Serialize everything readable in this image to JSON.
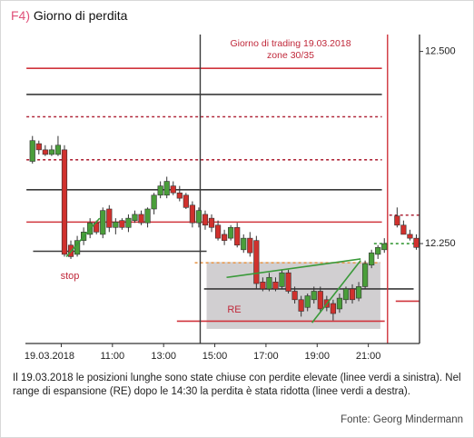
{
  "header": {
    "label": "F4)",
    "title": "Giorno di perdita"
  },
  "caption": "Il 19.03.2018 le posizioni lunghe sono state chiuse con perdite elevate (linee verdi a sinistra). Nel range di espansione (RE) dopo le 14:30 la perdita è stata ridotta (linee verdi a destra).",
  "source": "Fonte: Georg Mindermann",
  "chart_data": {
    "type": "candlestick",
    "annotations": [
      "Giorno di trading 19.03.2018",
      "zone 30/35",
      "stop",
      "RE"
    ],
    "xlim": [
      7.6,
      23.0
    ],
    "xticks": [
      {
        "value": 9,
        "label": "19.03.2018"
      },
      {
        "value": 11,
        "label": "11:00"
      },
      {
        "value": 13,
        "label": "13:00"
      },
      {
        "value": 15,
        "label": "15:00"
      },
      {
        "value": 17,
        "label": "17:00"
      },
      {
        "value": 19,
        "label": "19:00"
      },
      {
        "value": 21,
        "label": "21:00"
      }
    ],
    "ylim": [
      12120,
      12522
    ],
    "yticks": [
      {
        "value": 12500,
        "label": "12.500"
      },
      {
        "value": 12250,
        "label": "12.250"
      }
    ],
    "up_color": "#4a9e3a",
    "down_color": "#d0312d",
    "x": [
      7.875,
      8.125,
      8.375,
      8.625,
      8.875,
      9.125,
      9.375,
      9.625,
      9.875,
      10.125,
      10.375,
      10.625,
      10.875,
      11.125,
      11.375,
      11.625,
      11.875,
      12.125,
      12.375,
      12.625,
      12.875,
      13.125,
      13.375,
      13.625,
      13.875,
      14.125,
      14.375,
      14.625,
      14.875,
      15.125,
      15.375,
      15.625,
      15.875,
      16.125,
      16.375,
      16.625,
      16.875,
      17.125,
      17.375,
      17.625,
      17.875,
      18.125,
      18.375,
      18.625,
      18.875,
      19.125,
      19.375,
      19.625,
      19.875,
      20.125,
      20.375,
      20.625,
      20.875,
      21.125,
      21.375,
      21.625,
      22.125,
      22.375,
      22.625,
      22.875
    ],
    "open": [
      12357,
      12380,
      12372,
      12366,
      12366,
      12372,
      12248,
      12236,
      12254,
      12262,
      12277,
      12262,
      12295,
      12271,
      12280,
      12271,
      12280,
      12288,
      12277,
      12295,
      12313,
      12313,
      12325,
      12316,
      12313,
      12300,
      12277,
      12288,
      12283,
      12274,
      12262,
      12257,
      12271,
      12242,
      12257,
      12254,
      12200,
      12191,
      12200,
      12194,
      12212,
      12188,
      12177,
      12167,
      12177,
      12188,
      12177,
      12172,
      12165,
      12177,
      12191,
      12179,
      12194,
      12222,
      12236,
      12242,
      12286,
      12274,
      12262,
      12257
    ],
    "high": [
      12390,
      12384,
      12378,
      12378,
      12390,
      12378,
      12254,
      12260,
      12271,
      12283,
      12280,
      12297,
      12300,
      12283,
      12283,
      12288,
      12293,
      12293,
      12297,
      12316,
      12331,
      12337,
      12331,
      12325,
      12316,
      12305,
      12297,
      12293,
      12288,
      12280,
      12268,
      12274,
      12277,
      12262,
      12265,
      12260,
      12206,
      12212,
      12206,
      12216,
      12216,
      12194,
      12182,
      12185,
      12194,
      12194,
      12182,
      12177,
      12185,
      12194,
      12197,
      12200,
      12228,
      12242,
      12248,
      12257,
      12297,
      12280,
      12268,
      12262
    ],
    "low": [
      12354,
      12366,
      12364,
      12364,
      12364,
      12233,
      12230,
      12233,
      12248,
      12257,
      12262,
      12257,
      12265,
      12262,
      12268,
      12265,
      12277,
      12274,
      12271,
      12288,
      12309,
      12309,
      12313,
      12305,
      12295,
      12271,
      12271,
      12268,
      12265,
      12254,
      12248,
      12254,
      12245,
      12238,
      12233,
      12191,
      12188,
      12188,
      12188,
      12191,
      12185,
      12172,
      12155,
      12162,
      12172,
      12160,
      12162,
      12150,
      12160,
      12172,
      12172,
      12175,
      12191,
      12218,
      12230,
      12238,
      12271,
      12262,
      12254,
      12242
    ],
    "close": [
      12384,
      12372,
      12366,
      12372,
      12378,
      12236,
      12233,
      12254,
      12265,
      12277,
      12265,
      12293,
      12271,
      12278,
      12271,
      12283,
      12288,
      12277,
      12295,
      12313,
      12325,
      12331,
      12316,
      12309,
      12297,
      12277,
      12293,
      12274,
      12271,
      12257,
      12254,
      12271,
      12248,
      12257,
      12238,
      12198,
      12191,
      12206,
      12191,
      12212,
      12188,
      12177,
      12162,
      12182,
      12188,
      12165,
      12167,
      12159,
      12179,
      12191,
      12177,
      12194,
      12224,
      12238,
      12245,
      12250,
      12274,
      12262,
      12257,
      12245
    ],
    "zone": {
      "x": [
        14.68,
        21.47
      ],
      "y": [
        12139,
        12226
      ],
      "color": "#c9c7c9"
    },
    "levels": [
      {
        "value": 12478,
        "from": 7.64,
        "to": 21.53,
        "color": "#d0343c",
        "dash": false
      },
      {
        "value": 12444,
        "from": 7.64,
        "to": 21.53,
        "color": "#3a3a3a",
        "dash": false
      },
      {
        "value": 12415,
        "from": 7.64,
        "to": 21.53,
        "color": "#b0283a",
        "dash": true
      },
      {
        "value": 12359,
        "from": 7.64,
        "to": 21.53,
        "color": "#b0283a",
        "dash": true
      },
      {
        "value": 12320,
        "from": 7.64,
        "to": 21.53,
        "color": "#3a3a3a",
        "dash": false
      },
      {
        "value": 12278,
        "from": 7.64,
        "to": 21.53,
        "color": "#d0343c",
        "dash": false
      },
      {
        "value": 12240,
        "from": 7.9,
        "to": 14.68,
        "color": "#3a3a3a",
        "dash": false
      },
      {
        "value": 12225,
        "from": 14.22,
        "to": 21.47,
        "color": "#e89a50",
        "dash": true
      },
      {
        "value": 12191,
        "from": 14.58,
        "to": 22.77,
        "color": "#3a3a3a",
        "dash": false
      },
      {
        "value": 12149,
        "from": 13.52,
        "to": 21.64,
        "color": "#d0343c",
        "dash": false
      },
      {
        "value": 12287,
        "from": 21.82,
        "to": 23.0,
        "color": "#b0283a",
        "dash": true
      },
      {
        "value": 12250,
        "from": 21.22,
        "to": 22.77,
        "color": "#3a9a3a",
        "dash": true
      },
      {
        "value": 12175,
        "from": 22.07,
        "to": 23.0,
        "color": "#d0343c",
        "dash": false
      }
    ],
    "vlines": [
      {
        "x": 14.43,
        "color": "#3a3a3a"
      },
      {
        "x": 21.75,
        "color": "#d0343c"
      }
    ],
    "trendlines": [
      {
        "x": [
          9.2,
          10.5
        ],
        "y": [
          12233,
          12283
        ],
        "color": "#3a9a3a"
      },
      {
        "x": [
          18.8,
          20.7
        ],
        "y": [
          12147,
          12228
        ],
        "color": "#3a9a3a"
      },
      {
        "x": [
          15.46,
          20.7
        ],
        "y": [
          12206,
          12230
        ],
        "color": "#3a9a3a"
      }
    ]
  }
}
